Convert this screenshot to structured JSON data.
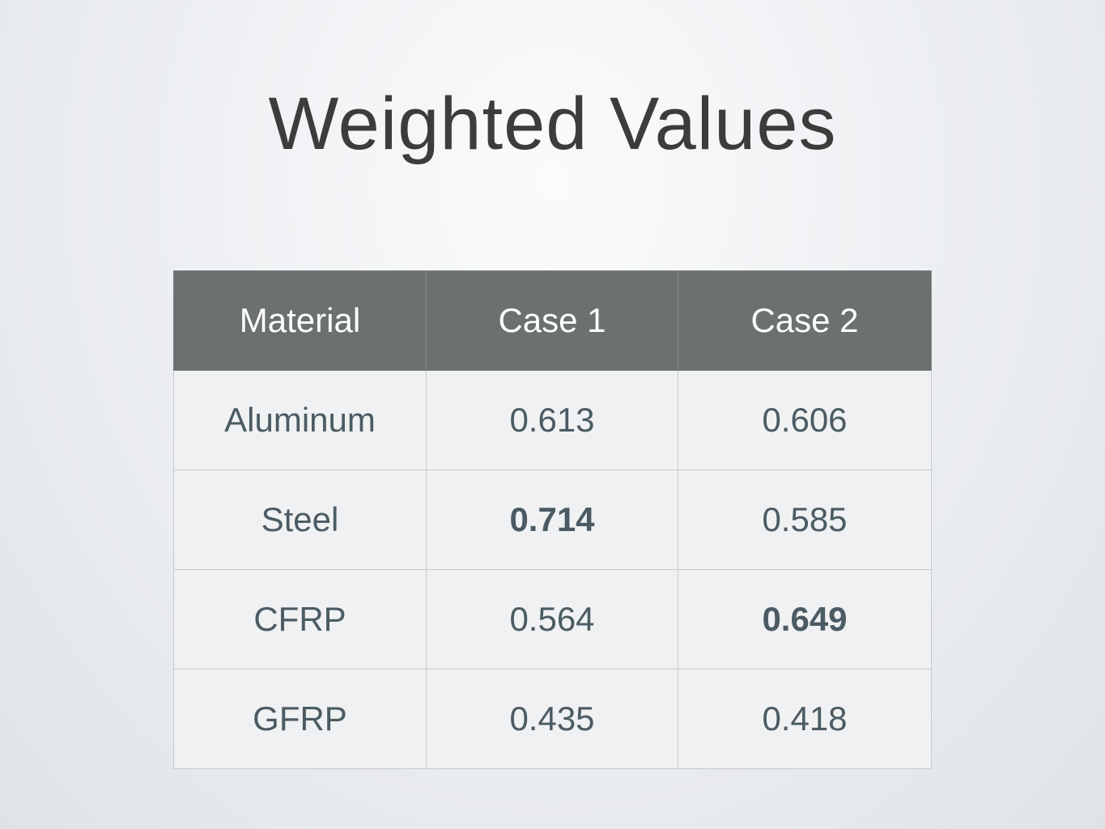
{
  "title": "Weighted Values",
  "table": {
    "headers": [
      "Material",
      "Case 1",
      "Case 2"
    ],
    "rows": [
      {
        "material": "Aluminum",
        "case1": "0.613",
        "case2": "0.606"
      },
      {
        "material": "Steel",
        "case1": "0.714",
        "case2": "0.585"
      },
      {
        "material": "CFRP",
        "case1": "0.564",
        "case2": "0.649"
      },
      {
        "material": "GFRP",
        "case1": "0.435",
        "case2": "0.418"
      }
    ]
  },
  "colors": {
    "header_bg": "#6b716e",
    "header_text": "#ffffff",
    "cell_bg": "#f0f1f3",
    "cell_text": "#4b5b63",
    "title_text": "#3c3c3c"
  }
}
